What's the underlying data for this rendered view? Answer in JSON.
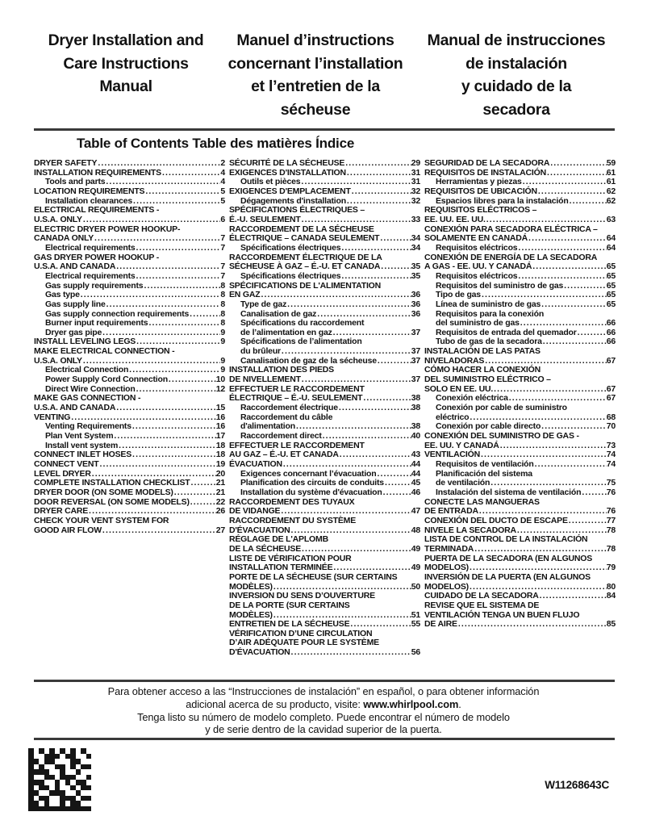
{
  "colors": {
    "text": "#121212",
    "rule": "#3a3a3a"
  },
  "header": {
    "titles": [
      {
        "lines": [
          "Dryer Installation and",
          "Care Instructions",
          "Manual"
        ]
      },
      {
        "lines": [
          "Manuel d’instructions",
          "concernant l’installation",
          "et l’entretien de la",
          "sécheuse"
        ]
      },
      {
        "lines": [
          "Manual de instrucciones",
          "de instalación",
          "y cuidado de la",
          "secadora"
        ]
      }
    ]
  },
  "toc": {
    "heading": "Table of Contents Table des matières Índice",
    "columns": [
      {
        "name": "english",
        "entries": [
          {
            "i": 0,
            "l": [
              "DRYER SAFETY"
            ],
            "p": "2"
          },
          {
            "i": 0,
            "l": [
              "INSTALLATION REQUIREMENTS"
            ],
            "p": "4"
          },
          {
            "i": 1,
            "l": [
              "Tools and parts"
            ],
            "p": "4"
          },
          {
            "i": 0,
            "l": [
              "LOCATION REQUIREMENTS"
            ],
            "p": "5"
          },
          {
            "i": 1,
            "l": [
              "Installation clearances"
            ],
            "p": "5"
          },
          {
            "i": 0,
            "l": [
              "ELECTRICAL REQUIREMENTS -",
              "U.S.A. ONLY"
            ],
            "p": "6"
          },
          {
            "i": 0,
            "l": [
              "ELECTRIC DRYER POWER HOOKUP-",
              "CANADA ONLY"
            ],
            "p": "7"
          },
          {
            "i": 1,
            "l": [
              "Electrical requirements"
            ],
            "p": "7"
          },
          {
            "i": 0,
            "l": [
              "GAS DRYER POWER HOOKUP -",
              "U.S.A. AND CANADA"
            ],
            "p": "7"
          },
          {
            "i": 1,
            "l": [
              "Electrical requirements"
            ],
            "p": "7"
          },
          {
            "i": 1,
            "l": [
              "Gas supply requirements"
            ],
            "p": "8"
          },
          {
            "i": 1,
            "l": [
              "Gas type"
            ],
            "p": "8"
          },
          {
            "i": 1,
            "l": [
              "Gas supply line"
            ],
            "p": "8"
          },
          {
            "i": 1,
            "l": [
              "Gas supply connection requirements"
            ],
            "p": "8"
          },
          {
            "i": 1,
            "l": [
              "Burner input requirements"
            ],
            "p": "8"
          },
          {
            "i": 1,
            "l": [
              "Dryer gas pipe"
            ],
            "p": "9"
          },
          {
            "i": 0,
            "l": [
              "INSTALL LEVELING LEGS"
            ],
            "p": "9"
          },
          {
            "i": 0,
            "l": [
              "MAKE ELECTRICAL CONNECTION -",
              "U.S.A. ONLY"
            ],
            "p": "9"
          },
          {
            "i": 1,
            "l": [
              "Electrical Connection"
            ],
            "p": "9"
          },
          {
            "i": 1,
            "l": [
              "Power Supply Cord Connection"
            ],
            "p": "10"
          },
          {
            "i": 1,
            "l": [
              "Direct Wire Connection"
            ],
            "p": "12"
          },
          {
            "i": 0,
            "l": [
              "MAKE GAS CONNECTION -",
              "U.S.A. AND CANADA"
            ],
            "p": "15"
          },
          {
            "i": 0,
            "l": [
              "VENTING"
            ],
            "p": "16"
          },
          {
            "i": 1,
            "l": [
              "Venting Requirements"
            ],
            "p": "16"
          },
          {
            "i": 1,
            "l": [
              "Plan Vent System"
            ],
            "p": "17"
          },
          {
            "i": 1,
            "l": [
              "Install vent system"
            ],
            "p": "18"
          },
          {
            "i": 0,
            "l": [
              "CONNECT INLET HOSES"
            ],
            "p": "18"
          },
          {
            "i": 0,
            "l": [
              "CONNECT VENT"
            ],
            "p": "19"
          },
          {
            "i": 0,
            "l": [
              "LEVEL DRYER"
            ],
            "p": "20"
          },
          {
            "i": 0,
            "l": [
              "COMPLETE INSTALLATION CHECKLIST"
            ],
            "p": "21"
          },
          {
            "i": 0,
            "l": [
              "DRYER DOOR (ON SOME MODELS)"
            ],
            "p": "21"
          },
          {
            "i": 0,
            "l": [
              "DOOR REVERSAL (ON SOME MODELS)"
            ],
            "p": "22"
          },
          {
            "i": 0,
            "l": [
              "DRYER CARE"
            ],
            "p": "26"
          },
          {
            "i": 0,
            "l": [
              "CHECK YOUR VENT SYSTEM FOR",
              "GOOD AIR FLOW"
            ],
            "p": "27"
          }
        ]
      },
      {
        "name": "french",
        "entries": [
          {
            "i": 0,
            "l": [
              "SÉCURITÉ DE LA SÉCHEUSE"
            ],
            "p": "29"
          },
          {
            "i": 0,
            "l": [
              "EXIGENCES D'INSTALLATION"
            ],
            "p": "31"
          },
          {
            "i": 1,
            "l": [
              "Outils et pièces"
            ],
            "p": "31"
          },
          {
            "i": 0,
            "l": [
              "EXIGENCES D'EMPLACEMENT"
            ],
            "p": "32"
          },
          {
            "i": 1,
            "l": [
              "Dégagements d'installation"
            ],
            "p": "32"
          },
          {
            "i": 0,
            "l": [
              "SPÉCIFICATIONS ÉLECTRIQUES –",
              "É.-U. SEULEMENT"
            ],
            "p": "33"
          },
          {
            "i": 0,
            "l": [
              "RACCORDEMENT DE LA SÉCHEUSE",
              "ÉLECTRIQUE – CANADA SEULEMENT"
            ],
            "p": "34"
          },
          {
            "i": 1,
            "l": [
              "Spécifications électriques"
            ],
            "p": "34"
          },
          {
            "i": 0,
            "l": [
              "RACCORDEMENT ÉLECTRIQUE DE LA",
              "SÉCHEUSE À GAZ – É.-U. ET CANADA"
            ],
            "p": "35"
          },
          {
            "i": 1,
            "l": [
              "Spécifications électriques"
            ],
            "p": "35"
          },
          {
            "i": 0,
            "l": [
              "SPÉCIFICATIONS DE L'ALIMENTATION",
              "EN GAZ"
            ],
            "p": "36"
          },
          {
            "i": 1,
            "l": [
              "Type de gaz"
            ],
            "p": "36"
          },
          {
            "i": 1,
            "l": [
              "Canalisation de gaz"
            ],
            "p": "36"
          },
          {
            "i": 1,
            "l": [
              "Spécifications du raccordement",
              "de l’alimentation en gaz"
            ],
            "p": "37"
          },
          {
            "i": 1,
            "l": [
              "Spécifications de l’alimentation",
              "du brûleur"
            ],
            "p": "37"
          },
          {
            "i": 1,
            "l": [
              "Canalisation de gaz de la sécheuse"
            ],
            "p": "37"
          },
          {
            "i": 0,
            "l": [
              "INSTALLATION DES PIEDS",
              "DE NIVELLEMENT"
            ],
            "p": "37"
          },
          {
            "i": 0,
            "l": [
              "EFFECTUER LE RACCORDEMENT",
              "ÉLECTRIQUE – É.-U. SEULEMENT"
            ],
            "p": "38"
          },
          {
            "i": 1,
            "l": [
              "Raccordement électrique"
            ],
            "p": "38"
          },
          {
            "i": 1,
            "l": [
              "Raccordement du câble",
              "d'alimentation"
            ],
            "p": "38"
          },
          {
            "i": 1,
            "l": [
              "Raccordement direct"
            ],
            "p": "40"
          },
          {
            "i": 0,
            "l": [
              "EFFECTUER LE RACCORDEMENT",
              "AU GAZ – É.-U. ET CANADA"
            ],
            "p": "43"
          },
          {
            "i": 0,
            "l": [
              "ÉVACUATION"
            ],
            "p": "44"
          },
          {
            "i": 1,
            "l": [
              "Exigences concernant l’évacuation"
            ],
            "p": "44"
          },
          {
            "i": 1,
            "l": [
              "Planification des circuits de conduits"
            ],
            "p": "45"
          },
          {
            "i": 1,
            "l": [
              "Installation du système d'évacuation"
            ],
            "p": "46"
          },
          {
            "i": 0,
            "l": [
              "RACCORDEMENT DES TUYAUX",
              "DE VIDANGE"
            ],
            "p": "47"
          },
          {
            "i": 0,
            "l": [
              "RACCORDEMENT DU SYSTÈME",
              "D'ÉVACUATION"
            ],
            "p": "48"
          },
          {
            "i": 0,
            "l": [
              "RÉGLAGE DE L'APLOMB",
              "DE LA SÉCHEUSE"
            ],
            "p": "49"
          },
          {
            "i": 0,
            "l": [
              "LISTE DE VÉRIFICATION POUR",
              "INSTALLATION TERMINÉE"
            ],
            "p": "49"
          },
          {
            "i": 0,
            "l": [
              "PORTE DE LA SÉCHEUSE (SUR CERTAINS",
              "MODÈLES)"
            ],
            "p": "50"
          },
          {
            "i": 0,
            "l": [
              "INVERSION DU SENS D’OUVERTURE",
              "DE LA PORTE (SUR CERTAINS",
              " MODÈLES)"
            ],
            "p": "51"
          },
          {
            "i": 0,
            "l": [
              "ENTRETIEN DE LA SÉCHEUSE"
            ],
            "p": "55"
          },
          {
            "i": 0,
            "l": [
              "VÉRIFICATION D’UNE CIRCULATION",
              "D’AIR ADÉQUATE POUR LE SYSTÈME",
              "D'ÉVACUATION"
            ],
            "p": "56"
          }
        ]
      },
      {
        "name": "spanish",
        "entries": [
          {
            "i": 0,
            "l": [
              "SEGURIDAD DE LA SECADORA"
            ],
            "p": "59"
          },
          {
            "i": 0,
            "l": [
              "REQUISITOS DE INSTALACIÓN"
            ],
            "p": "61"
          },
          {
            "i": 1,
            "l": [
              "Herramientas y piezas"
            ],
            "p": "61"
          },
          {
            "i": 0,
            "l": [
              "REQUISITOS DE UBICACIÓN"
            ],
            "p": "62"
          },
          {
            "i": 1,
            "l": [
              "Espacios libres para la instalación"
            ],
            "p": "62"
          },
          {
            "i": 0,
            "l": [
              "REQUISITOS ELÉCTRICOS –",
              "EE. UU. EE. UU."
            ],
            "p": "63"
          },
          {
            "i": 0,
            "l": [
              "CONEXIÓN PARA SECADORA ELÉCTRICA –",
              "SOLAMENTE EN CANADÁ"
            ],
            "p": "64"
          },
          {
            "i": 1,
            "l": [
              "Requisitos eléctricos"
            ],
            "p": "64"
          },
          {
            "i": 0,
            "l": [
              "CONEXIÓN DE ENERGÍA DE LA SECADORA",
              "A GAS - EE. UU. Y CANADÁ"
            ],
            "p": "65"
          },
          {
            "i": 1,
            "l": [
              "Requisitos eléctricos"
            ],
            "p": "65"
          },
          {
            "i": 1,
            "l": [
              "Requisitos del suministro de gas"
            ],
            "p": "65"
          },
          {
            "i": 1,
            "l": [
              "Tipo de gas"
            ],
            "p": "65"
          },
          {
            "i": 1,
            "l": [
              "Línea de suministro de gas"
            ],
            "p": "65"
          },
          {
            "i": 1,
            "l": [
              "Requisitos para la conexión",
              "del suministro de gas"
            ],
            "p": "66"
          },
          {
            "i": 1,
            "l": [
              "Requisitos de entrada del quemador"
            ],
            "p": "66"
          },
          {
            "i": 1,
            "l": [
              "Tubo de gas de la secadora"
            ],
            "p": "66"
          },
          {
            "i": 0,
            "l": [
              "INSTALACIÓN DE LAS PATAS",
              "NIVELADORAS"
            ],
            "p": "67"
          },
          {
            "i": 0,
            "l": [
              "CÓMO HACER LA CONEXIÓN",
              "DEL SUMINISTRO ELÉCTRICO –",
              "SOLO EN EE. UU."
            ],
            "p": "67"
          },
          {
            "i": 1,
            "l": [
              "Conexión eléctrica"
            ],
            "p": "67"
          },
          {
            "i": 1,
            "l": [
              "Conexión por cable de suministro",
              "eléctrico"
            ],
            "p": "68"
          },
          {
            "i": 1,
            "l": [
              "Conexión por cable directo"
            ],
            "p": "70"
          },
          {
            "i": 0,
            "l": [
              "CONEXIÓN DEL SUMINISTRO DE GAS -",
              "EE. UU. Y CANADÁ"
            ],
            "p": "73"
          },
          {
            "i": 0,
            "l": [
              "VENTILACIÓN"
            ],
            "p": "74"
          },
          {
            "i": 1,
            "l": [
              "Requisitos de ventilación"
            ],
            "p": "74"
          },
          {
            "i": 1,
            "l": [
              "Planificación del sistema",
              "de ventilación"
            ],
            "p": "75"
          },
          {
            "i": 1,
            "l": [
              "Instalación del sistema de ventilación"
            ],
            "p": "76"
          },
          {
            "i": 0,
            "l": [
              "CONECTE LAS MANGUERAS",
              "DE ENTRADA"
            ],
            "p": "76"
          },
          {
            "i": 0,
            "l": [
              "CONEXIÓN DEL DUCTO DE ESCAPE"
            ],
            "p": "77"
          },
          {
            "i": 0,
            "l": [
              "NIVELE LA SECADORA"
            ],
            "p": "78"
          },
          {
            "i": 0,
            "l": [
              "LISTA DE CONTROL DE LA INSTALACIÓN",
              "TERMINADA"
            ],
            "p": "78"
          },
          {
            "i": 0,
            "l": [
              "PUERTA DE LA SECADORA (EN ALGUNOS",
              "MODELOS)"
            ],
            "p": "79"
          },
          {
            "i": 0,
            "l": [
              "INVERSIÓN DE LA PUERTA (EN ALGUNOS",
              "MODELOS)"
            ],
            "p": "80"
          },
          {
            "i": 0,
            "l": [
              "CUIDADO DE LA SECADORA"
            ],
            "p": "84"
          },
          {
            "i": 0,
            "l": [
              "REVISE QUE EL SISTEMA DE",
              "VENTILACIÓN TENGA UN BUEN FLUJO",
              "DE AIRE"
            ],
            "p": "85"
          }
        ]
      }
    ]
  },
  "footer": {
    "line1": "Para obtener acceso a las “Instrucciones de instalación” en español, o para obtener información",
    "line2_prefix": "adicional acerca de su producto, visite: ",
    "line2_bold": "www.whirlpool.com",
    "line2_suffix": ".",
    "line3": "Tenga listo su número de modelo completo. Puede encontrar el número de modelo",
    "line4": "y de serie dentro de la cavidad superior de la puerta."
  },
  "doc_number": "W11268643C",
  "barcode": {
    "rows": [
      "101010101010",
      "100111011001",
      "110110001100",
      "101001101011",
      "111100100100",
      "100110111001",
      "111001010110",
      "101101001011",
      "110011100100",
      "101100111011",
      "110100101100",
      "111111111111"
    ]
  }
}
